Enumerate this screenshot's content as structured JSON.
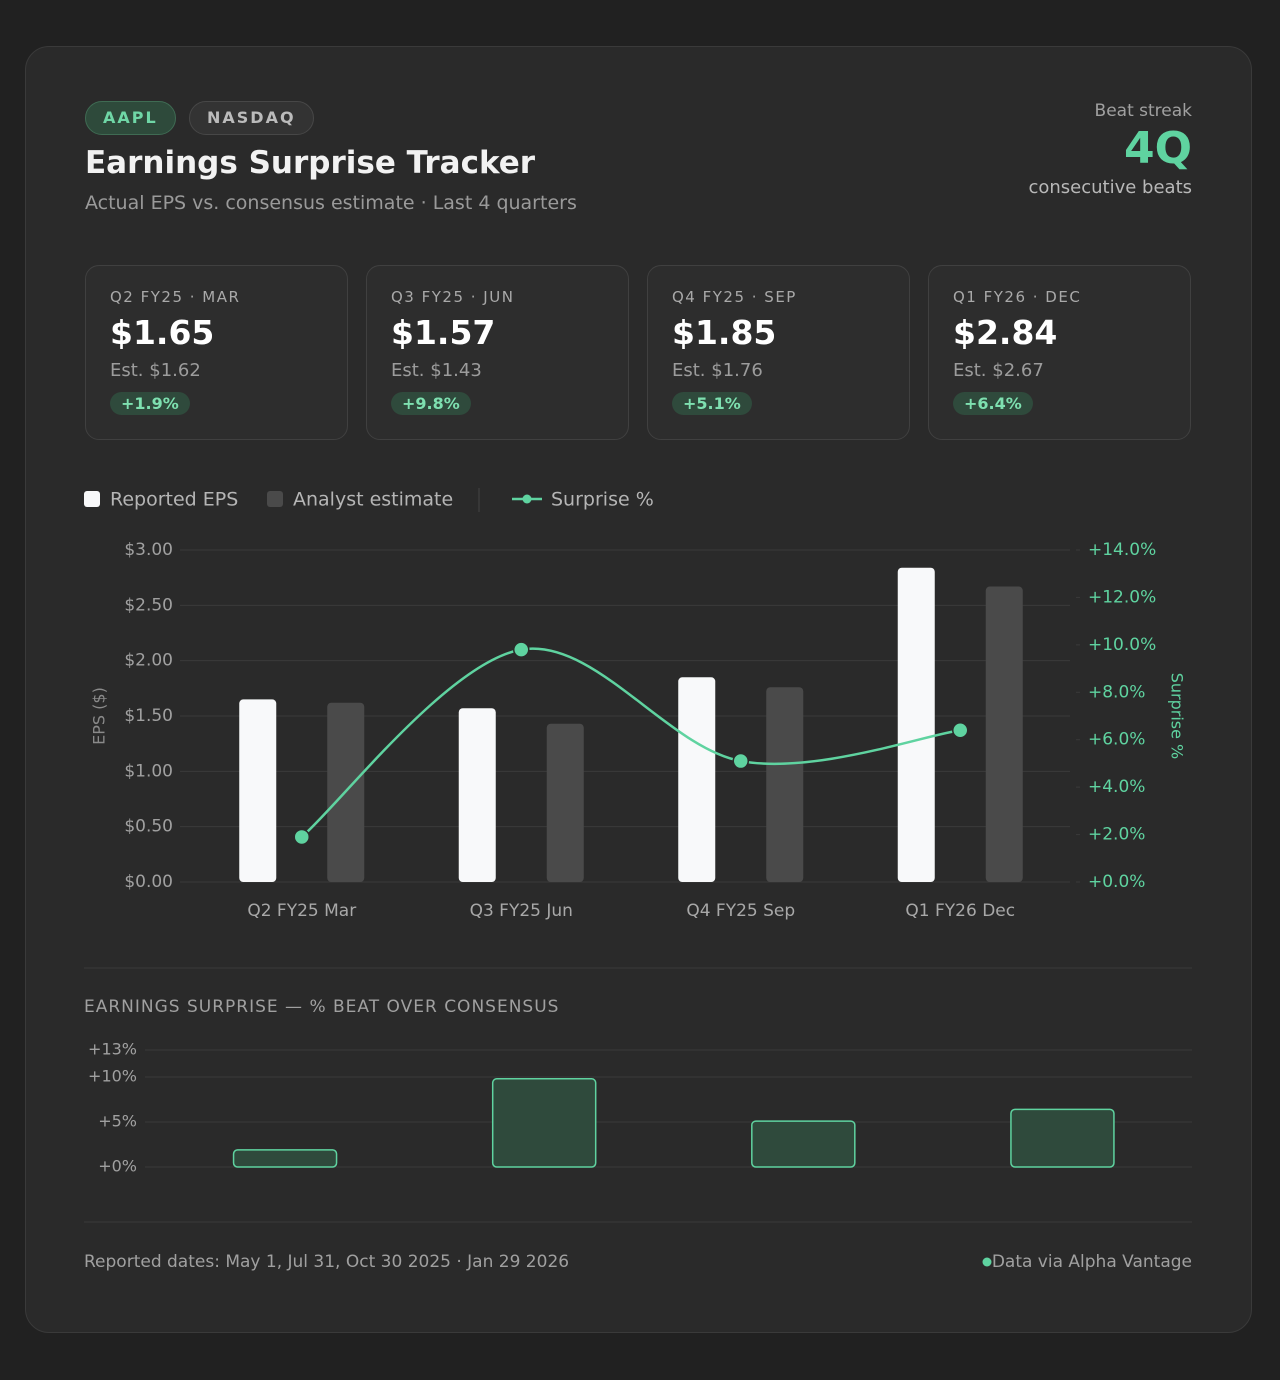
{
  "header": {
    "tags": [
      "AAPL",
      "NASDAQ"
    ],
    "title": "Earnings Surprise Tracker",
    "subtitle": "Actual EPS vs. consensus estimate · Last 4 quarters",
    "streak_label": "Beat streak",
    "streak_value": "4Q",
    "streak_caption": "consecutive beats"
  },
  "cards": [
    {
      "period": "Q2 FY25 · MAR",
      "actual": "$1.65",
      "estimate": "Est. $1.62",
      "surprise": "+1.9%"
    },
    {
      "period": "Q3 FY25 · JUN",
      "actual": "$1.57",
      "estimate": "Est. $1.43",
      "surprise": "+9.8%"
    },
    {
      "period": "Q4 FY25 · SEP",
      "actual": "$1.85",
      "estimate": "Est. $1.76",
      "surprise": "+5.1%"
    },
    {
      "period": "Q1 FY26 · DEC",
      "actual": "$2.84",
      "estimate": "Est. $2.67",
      "surprise": "+6.4%"
    }
  ],
  "chart_data": [
    {
      "type": "bar",
      "categories": [
        "Q2 FY25 Mar",
        "Q3 FY25 Jun",
        "Q4 FY25 Sep",
        "Q1 FY26 Dec"
      ],
      "series": [
        {
          "name": "Reported EPS",
          "color": "#f8f9fa",
          "values": [
            1.65,
            1.57,
            1.85,
            2.84
          ]
        },
        {
          "name": "Analyst estimate",
          "color": "#4a4a4a",
          "values": [
            1.62,
            1.43,
            1.76,
            2.67
          ]
        },
        {
          "name": "Surprise %",
          "type": "line",
          "axis": "y2",
          "color": "#5fd3a0",
          "values": [
            1.9,
            9.8,
            5.1,
            6.4
          ]
        }
      ],
      "ylabel": "EPS ($)",
      "y2label": "Surprise %",
      "ylim": [
        0,
        3
      ],
      "yticks": [
        {
          "value": 0,
          "label": "$0.00"
        },
        {
          "value": 0.5,
          "label": "$0.50"
        },
        {
          "value": 1,
          "label": "$1.00"
        },
        {
          "value": 1.5,
          "label": "$1.50"
        },
        {
          "value": 2,
          "label": "$2.00"
        },
        {
          "value": 2.5,
          "label": "$2.50"
        },
        {
          "value": 3,
          "label": "$3.00"
        }
      ],
      "y2lim": [
        0,
        14
      ],
      "y2ticks": [
        {
          "value": 0,
          "label": "+0.0%"
        },
        {
          "value": 2,
          "label": "+2.0%"
        },
        {
          "value": 4,
          "label": "+4.0%"
        },
        {
          "value": 6,
          "label": "+6.0%"
        },
        {
          "value": 8,
          "label": "+8.0%"
        },
        {
          "value": 10,
          "label": "+10.0%"
        },
        {
          "value": 12,
          "label": "+12.0%"
        },
        {
          "value": 14,
          "label": "+14.0%"
        }
      ],
      "grid": true
    },
    {
      "type": "bar",
      "title": "EARNINGS SURPRISE — % BEAT OVER CONSENSUS",
      "values": [
        1.9,
        9.8,
        5.1,
        6.4
      ],
      "color": "#5fd3a0",
      "ylim": [
        0,
        13
      ],
      "yticks": [
        {
          "value": 0,
          "label": "+0%"
        },
        {
          "value": 5,
          "label": "+5%"
        },
        {
          "value": 10,
          "label": "+10%"
        },
        {
          "value": 13,
          "label": "+13%"
        }
      ],
      "grid": true
    }
  ],
  "footer": {
    "dates": "Reported dates: May 1, Jul 31, Oct 30 2025 · Jan 29 2026",
    "source": "Data via Alpha Vantage"
  }
}
